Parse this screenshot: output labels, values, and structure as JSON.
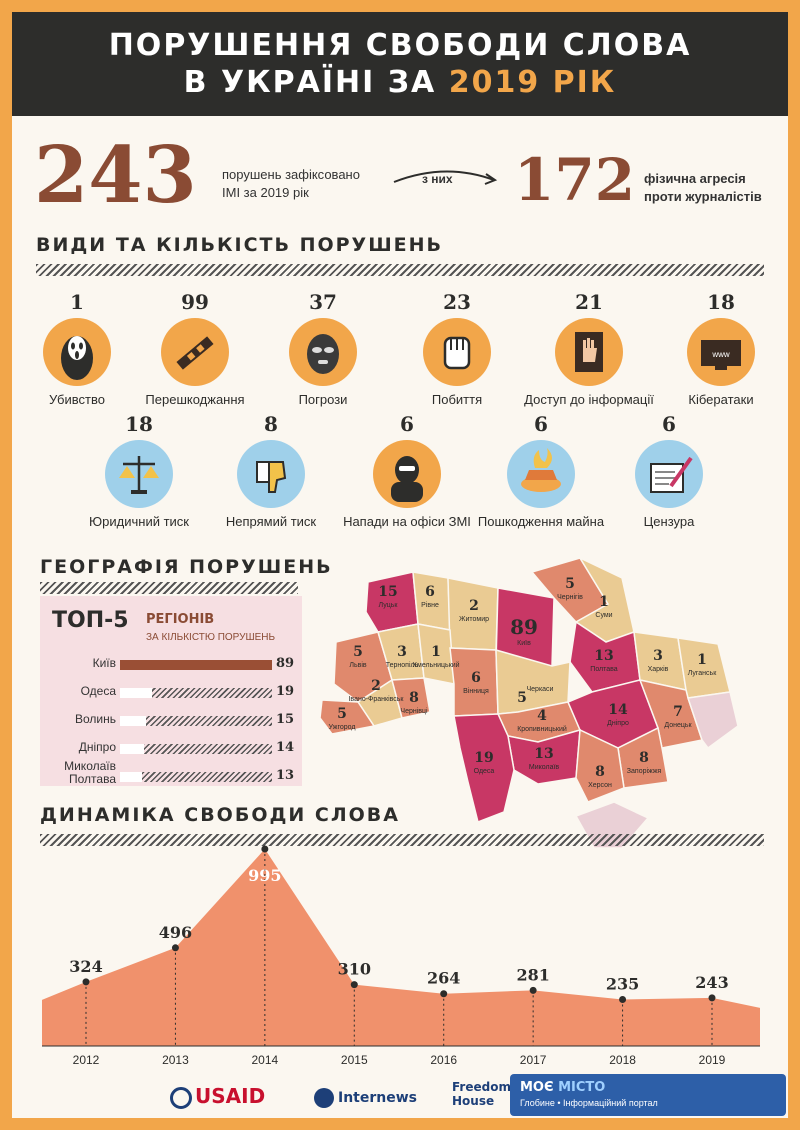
{
  "header": {
    "line1": "ПОРУШЕННЯ СВОБОДИ СЛОВА",
    "line2_prefix": "В УКРАЇНІ ЗА",
    "line2_year": "2019 РІК"
  },
  "summary": {
    "total": "243",
    "total_text_1": "порушень зафіксовано",
    "total_text_2": "ІМІ за 2019 рік",
    "arrow_label": "з них",
    "physical": "172",
    "physical_text_1": "фізична агресія",
    "physical_text_2": "проти журналістів"
  },
  "sections": {
    "types": "ВИДИ ТА КІЛЬКІСТЬ ПОРУШЕНЬ",
    "geography": "ГЕОГРАФІЯ ПОРУШЕНЬ",
    "dynamics": "ДИНАМІКА СВОБОДИ СЛОВА"
  },
  "violation_types": [
    {
      "count": "1",
      "label": "Убивство",
      "icon": "scream-mask-icon"
    },
    {
      "count": "99",
      "label": "Перешкоджання",
      "icon": "tape-icon"
    },
    {
      "count": "37",
      "label": "Погрози",
      "icon": "balaclava-icon"
    },
    {
      "count": "23",
      "label": "Побиття",
      "icon": "fist-icon"
    },
    {
      "count": "21",
      "label": "Доступ до інформації",
      "icon": "hand-on-door-icon"
    },
    {
      "count": "18",
      "label": "Кібератаки",
      "icon": "www-monitor-icon"
    },
    {
      "count": "18",
      "label": "Юридичний тиск",
      "icon": "scales-icon"
    },
    {
      "count": "8",
      "label": "Непрямий тиск",
      "icon": "thumbs-down-icon"
    },
    {
      "count": "6",
      "label": "Напади на офіси ЗМІ",
      "icon": "masked-attacker-icon"
    },
    {
      "count": "6",
      "label": "Пошкодження майна",
      "icon": "burning-car-icon"
    },
    {
      "count": "6",
      "label": "Цензура",
      "icon": "pen-paper-icon"
    }
  ],
  "top5": {
    "title": "ТОП-5",
    "subtitle": "РЕГІОНІВ",
    "note": "ЗА КІЛЬКІСТЮ ПОРУШЕНЬ",
    "max": 89,
    "rows": [
      {
        "name": "Київ",
        "value": 89,
        "label": "89"
      },
      {
        "name": "Одеса",
        "value": 19,
        "label": "19"
      },
      {
        "name": "Волинь",
        "value": 15,
        "label": "15"
      },
      {
        "name": "Дніпро",
        "value": 14,
        "label": "14"
      },
      {
        "name": "Миколаїв Полтава",
        "value": 13,
        "label": "13"
      }
    ]
  },
  "map_regions": [
    {
      "name": "Луцьк",
      "value": "15"
    },
    {
      "name": "Рівне",
      "value": "6"
    },
    {
      "name": "Житомир",
      "value": "2"
    },
    {
      "name": "Чернігів",
      "value": "5"
    },
    {
      "name": "Суми",
      "value": "1"
    },
    {
      "name": "Київ",
      "value": "89"
    },
    {
      "name": "Полтава",
      "value": "13"
    },
    {
      "name": "Харків",
      "value": "3"
    },
    {
      "name": "Луганськ",
      "value": "1"
    },
    {
      "name": "Львів",
      "value": "5"
    },
    {
      "name": "Тернопіль",
      "value": "3"
    },
    {
      "name": "Хмельницький",
      "value": "1"
    },
    {
      "name": "Черкаси",
      "value": ""
    },
    {
      "name": "Вінниця",
      "value": "6"
    },
    {
      "name": "Івано-Франківськ",
      "value": "2"
    },
    {
      "name": "Ужгород",
      "value": "5"
    },
    {
      "name": "Чернівці",
      "value": "8"
    },
    {
      "name": "Кропивницький",
      "value": "4"
    },
    {
      "name": "Дніпро",
      "value": "14"
    },
    {
      "name": "Донецьк",
      "value": "7"
    },
    {
      "name": "Миколаїв",
      "value": "13"
    },
    {
      "name": "Одеса",
      "value": "19"
    },
    {
      "name": "Запоріжжя",
      "value": "8"
    },
    {
      "name": "Херсон",
      "value": "8"
    },
    {
      "name": "",
      "value": "5"
    }
  ],
  "chart_data": {
    "type": "area",
    "title": "ДИНАМІКА СВОБОДИ СЛОВА",
    "x": [
      "2012",
      "2013",
      "2014",
      "2015",
      "2016",
      "2017",
      "2018",
      "2019"
    ],
    "values": [
      324,
      496,
      995,
      310,
      264,
      281,
      235,
      243
    ],
    "ylim": [
      0,
      1000
    ],
    "color": "#f0916c"
  },
  "footer": {
    "usaid": "USAID",
    "internews": "Internews",
    "freedom1": "Freedom",
    "freedom2": "House",
    "badge_main_1": "МОЄ",
    "badge_main_2": "МІСТО",
    "badge_sub": "Глобине • Інформаційний портал"
  },
  "colors": {
    "background": "#f2a64a",
    "header": "#2d2d2b",
    "accent_orange": "#f2a64a",
    "brown": "#8a4b34",
    "magenta": "#c83765",
    "salmon": "#e0896d",
    "sand": "#eacb93"
  }
}
